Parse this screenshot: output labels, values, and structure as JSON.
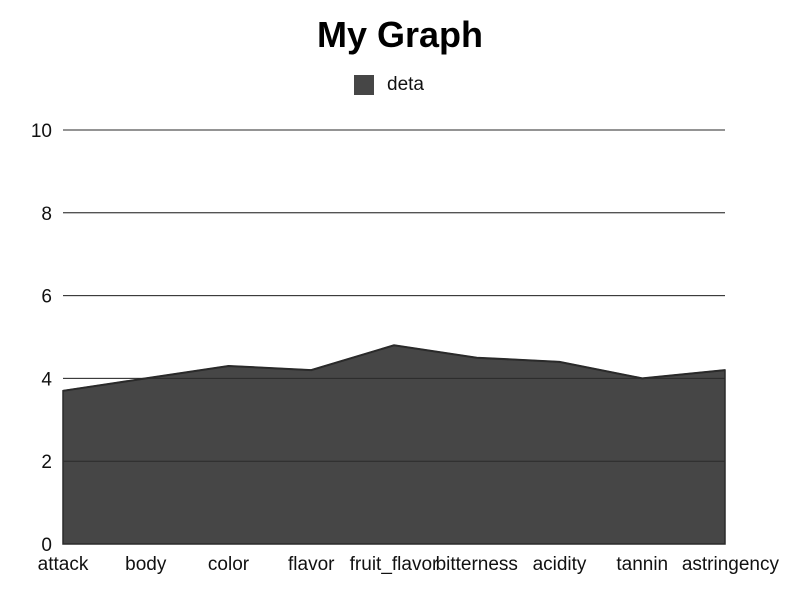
{
  "chart_data": {
    "type": "area",
    "title": "My Graph",
    "legend": {
      "position": "top-center",
      "entries": [
        "deta"
      ]
    },
    "categories": [
      "attack",
      "body",
      "color",
      "flavor",
      "fruit_flavor",
      "bitterness",
      "acidity",
      "tannin",
      "astringency"
    ],
    "series": [
      {
        "name": "deta",
        "values": [
          3.7,
          4.0,
          4.3,
          4.2,
          4.8,
          4.5,
          4.4,
          4.0,
          4.2
        ],
        "color": "#464646",
        "stroke": "#2a2a2a"
      }
    ],
    "ylim": [
      0,
      10
    ],
    "yticks": [
      "0",
      "2",
      "4",
      "6",
      "8",
      "10"
    ],
    "grid": true,
    "xlabel": "",
    "ylabel": ""
  }
}
